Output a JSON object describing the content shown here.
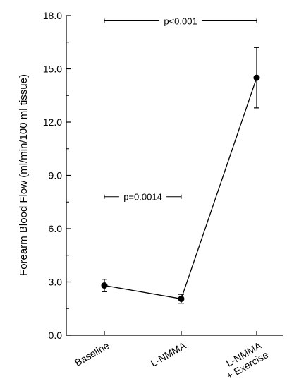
{
  "chart_data": {
    "type": "line",
    "title": "",
    "xlabel": "",
    "ylabel": "Forearm Blood Flow (ml/min/100 ml tissue)",
    "ylim": [
      0,
      18
    ],
    "yticks": [
      "0.0",
      "3.0",
      "6.0",
      "9.0",
      "12.0",
      "15.0",
      "18.0"
    ],
    "categories": [
      [
        "Baseline"
      ],
      [
        "L-NMMA"
      ],
      [
        "L-NMMA",
        "+ Exercise"
      ]
    ],
    "series": [
      {
        "values": [
          2.8,
          2.05,
          14.5
        ],
        "error": [
          0.35,
          0.25,
          1.7
        ],
        "color": "#000000"
      }
    ],
    "annotations": [
      {
        "text": "p<0.001",
        "from": 0,
        "to": 2,
        "level": 17.7
      },
      {
        "text": "p=0.0014",
        "from": 0,
        "to": 1,
        "level": 7.8
      }
    ],
    "grid": false
  }
}
